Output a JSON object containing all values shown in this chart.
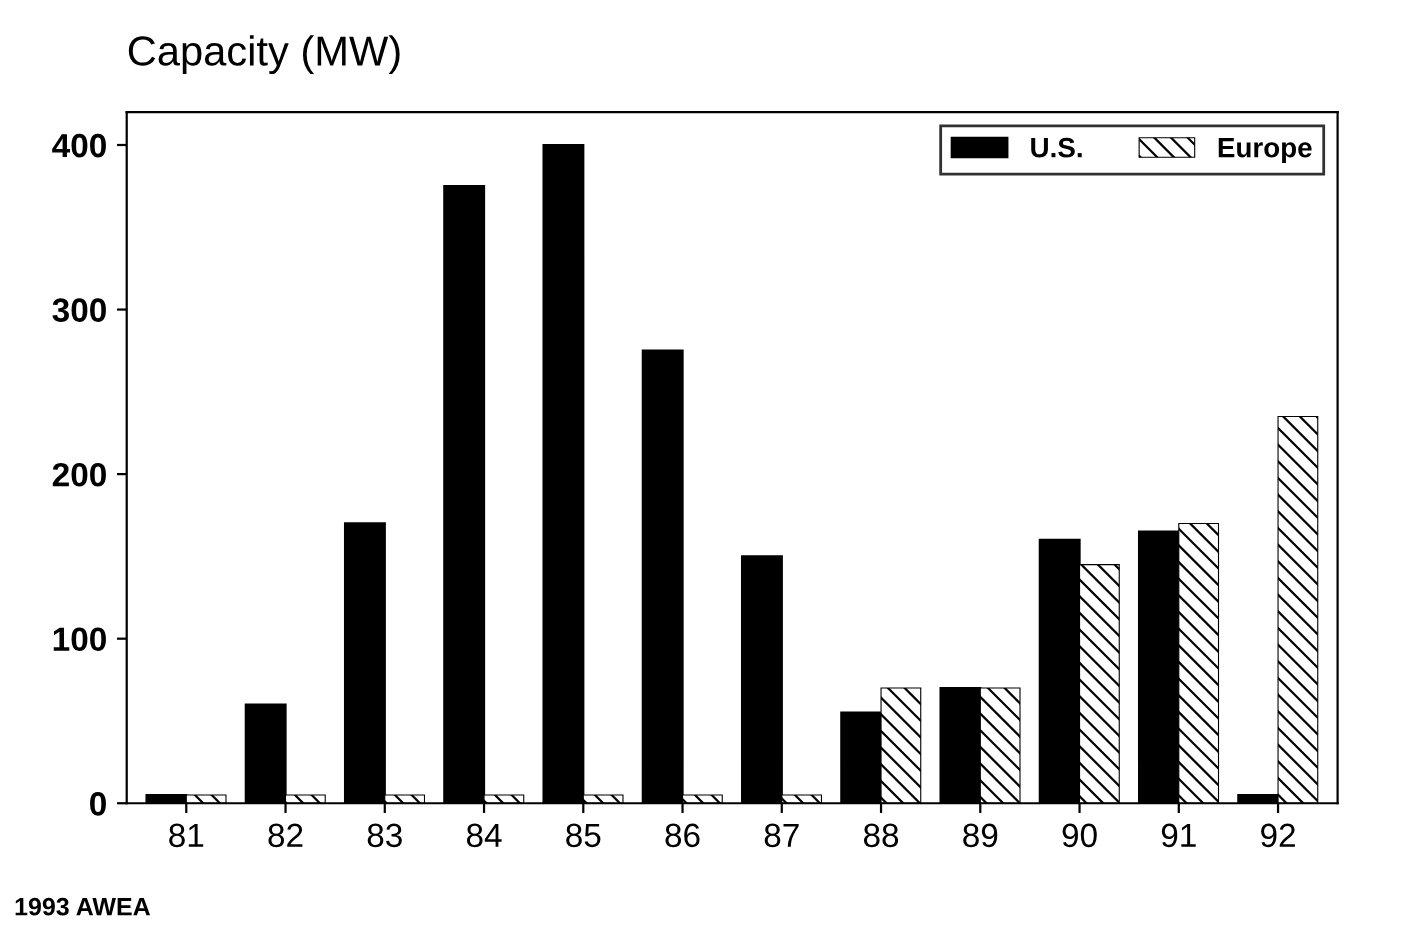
{
  "chart_data": {
    "type": "bar",
    "title": "Capacity (MW)",
    "categories": [
      "81",
      "82",
      "83",
      "84",
      "85",
      "86",
      "87",
      "88",
      "89",
      "90",
      "91",
      "92"
    ],
    "series": [
      {
        "name": "U.S.",
        "color": "#000000",
        "values": [
          5,
          60,
          170,
          375,
          400,
          275,
          150,
          55,
          70,
          160,
          165,
          5
        ]
      },
      {
        "name": "Europe",
        "color": "#000000",
        "values": [
          5,
          5,
          5,
          5,
          5,
          5,
          5,
          70,
          70,
          145,
          170,
          235
        ]
      }
    ],
    "ylim": [
      0,
      420
    ],
    "yticks": [
      0,
      100,
      200,
      300,
      400
    ],
    "grid": false,
    "legend": "top right",
    "annotations": [
      "1993 AWEA"
    ]
  }
}
